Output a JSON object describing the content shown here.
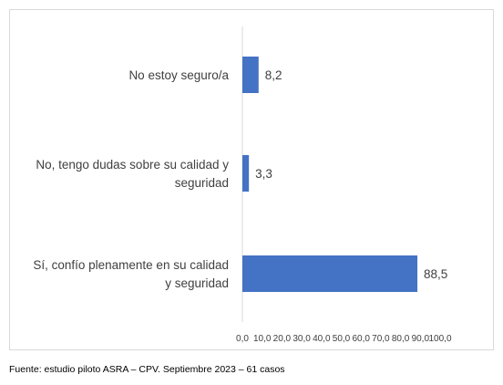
{
  "chart_data": {
    "type": "bar",
    "orientation": "horizontal",
    "categories": [
      "No estoy seguro/a",
      "No, tengo dudas sobre su calidad y seguridad",
      "Sí, confío plenamente en su calidad y seguridad"
    ],
    "category_label_lines": [
      [
        "No estoy seguro/a"
      ],
      [
        "No, tengo dudas sobre su calidad y",
        "seguridad"
      ],
      [
        "Sí, confío plenamente en su calidad",
        "y seguridad"
      ]
    ],
    "values": [
      8.2,
      3.3,
      88.5
    ],
    "data_labels": [
      "8,2",
      "3,3",
      "88,5"
    ],
    "xlim": [
      0,
      100
    ],
    "x_ticks": [
      0,
      10,
      20,
      30,
      40,
      50,
      60,
      70,
      80,
      90,
      100
    ],
    "x_tick_labels": [
      "0,0",
      "10,0",
      "20,0",
      "30,0",
      "40,0",
      "50,0",
      "60,0",
      "70,0",
      "80,0",
      "90,0",
      "100,0"
    ],
    "bar_color": "#4472C4",
    "axis_color": "#d9d9d9",
    "grid": false,
    "legend": "none"
  },
  "source_note": "Fuente: estudio piloto ASRA – CPV.  Septiembre 2023 – 61 casos"
}
